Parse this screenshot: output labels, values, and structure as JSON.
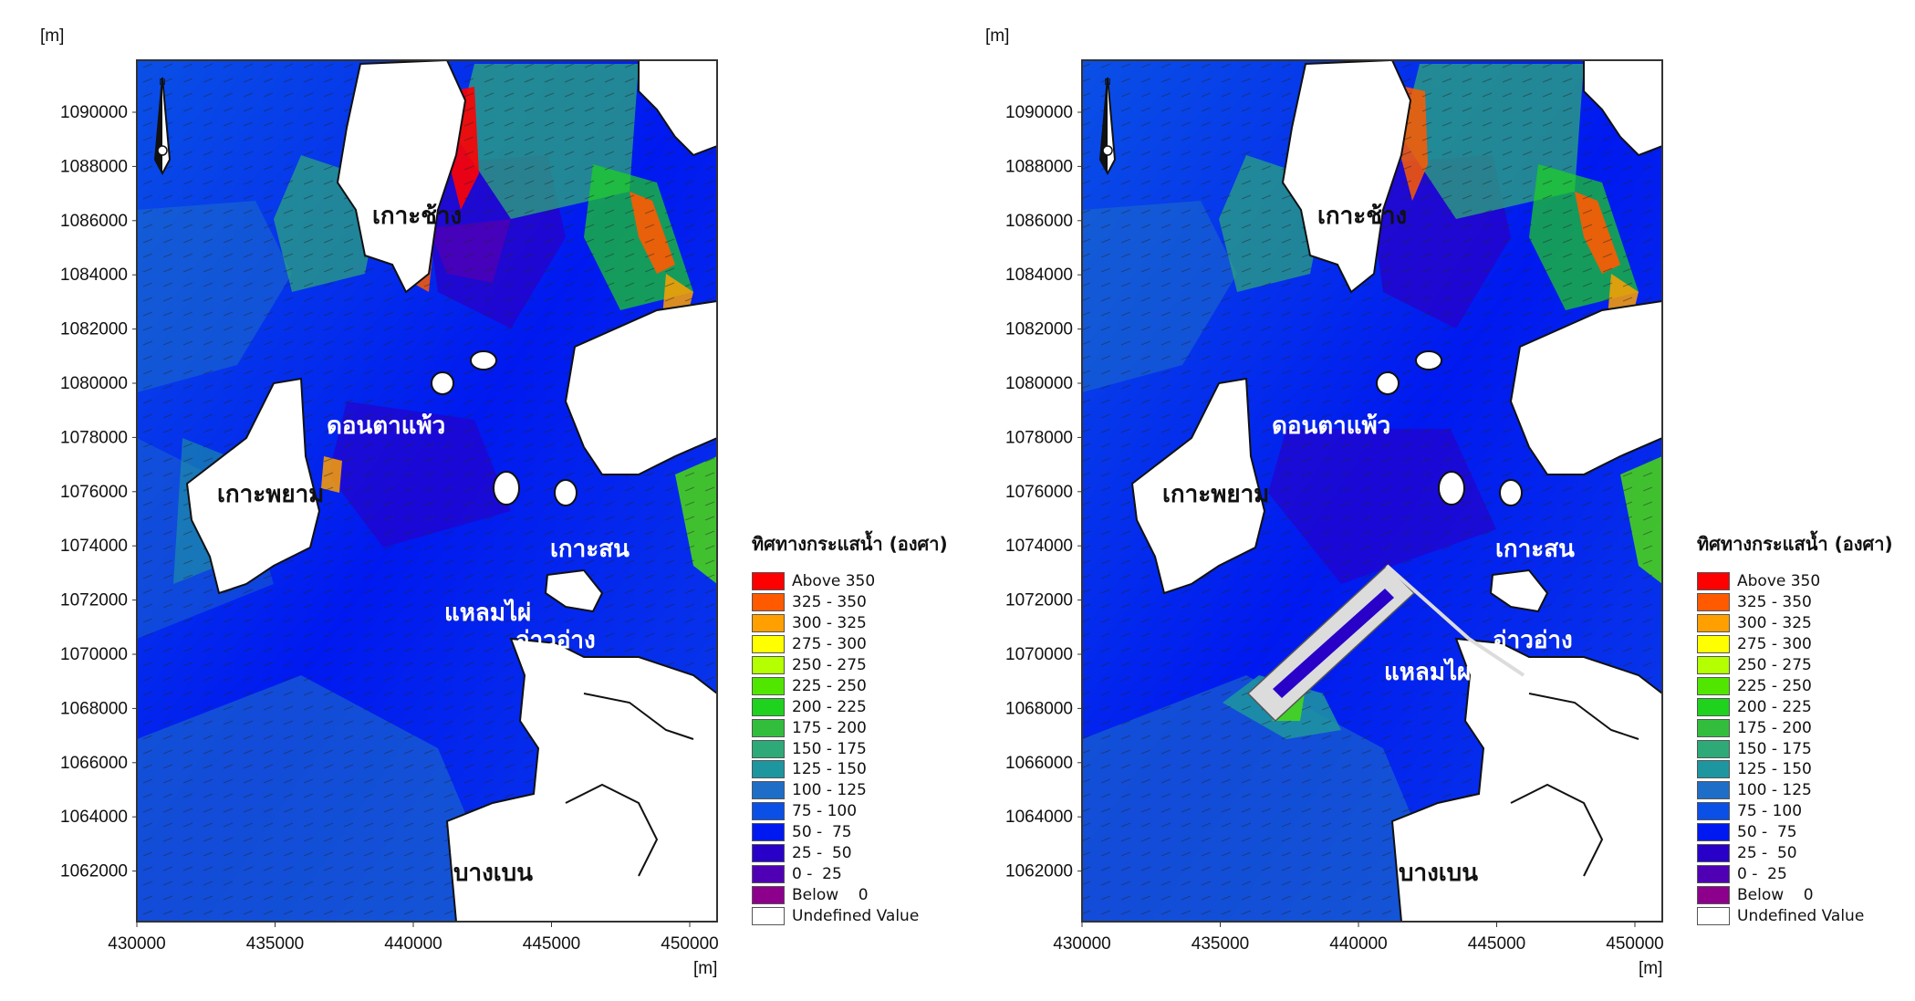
{
  "colors": {
    "above_350": "#ff0000",
    "c325_350": "#ff5a00",
    "c300_325": "#ffa000",
    "c275_300": "#ffff00",
    "c250_275": "#b4ff00",
    "c225_250": "#50e600",
    "c200_225": "#1ed21e",
    "c175_200": "#32be3c",
    "c150_175": "#2daa78",
    "c125_150": "#1e96a0",
    "c100_125": "#1e6ec8",
    "c75_100": "#0a50e6",
    "c50_75": "#0019f0",
    "c25_50": "#2800c8",
    "c0_25": "#5000b4",
    "below_0": "#8c008c",
    "undefined": "#ffffff",
    "land": "#ffffff",
    "coast": "#111111",
    "structure": "#dcdcdc"
  },
  "axes": {
    "y_unit": "[m]",
    "x_unit": "[m]",
    "y_ticks": [
      "1090000",
      "1088000",
      "1086000",
      "1084000",
      "1082000",
      "1080000",
      "1078000",
      "1076000",
      "1074000",
      "1072000",
      "1070000",
      "1068000",
      "1066000",
      "1064000",
      "1062000"
    ],
    "x_ticks": [
      "430000",
      "435000",
      "440000",
      "445000",
      "450000"
    ]
  },
  "north_arrow_label": "N",
  "panels": [
    {
      "id": "existing",
      "places": {
        "koh_chang": "เกาะช้าง",
        "don_ta_phaeo": "ดอนตาแพ้ว",
        "koh_phayam": "เกาะพยาม",
        "koh_son": "เกาะสน",
        "laem_phai": "แหลมไผ่",
        "ao_ang": "อ่าวอ่าง",
        "bang_ben": "บางเบน"
      }
    },
    {
      "id": "with-structure",
      "places": {
        "koh_chang": "เกาะช้าง",
        "don_ta_phaeo": "ดอนตาแพ้ว",
        "koh_phayam": "เกาะพยาม",
        "koh_son": "เกาะสน",
        "laem_phai": "แหลมไผ่",
        "ao_ang": "อ่าวอ่าง",
        "bang_ben": "บางเบน"
      }
    }
  ],
  "legend": {
    "title": "ทิศทางกระแสน้ำ (องศา)",
    "items": [
      {
        "label": "Above 350",
        "color": "#ff0000"
      },
      {
        "label": "325 - 350",
        "color": "#ff5a00"
      },
      {
        "label": "300 - 325",
        "color": "#ffa000"
      },
      {
        "label": "275 - 300",
        "color": "#ffff00"
      },
      {
        "label": "250 - 275",
        "color": "#b4ff00"
      },
      {
        "label": "225 - 250",
        "color": "#50e600"
      },
      {
        "label": "200 - 225",
        "color": "#1ed21e"
      },
      {
        "label": "175 - 200",
        "color": "#32be3c"
      },
      {
        "label": "150 - 175",
        "color": "#2daa78"
      },
      {
        "label": "125 - 150",
        "color": "#1e96a0"
      },
      {
        "label": "100 - 125",
        "color": "#1e6ec8"
      },
      {
        "label": "75 - 100",
        "color": "#0a50e6"
      },
      {
        "label": "50 -  75",
        "color": "#0019f0"
      },
      {
        "label": "25 -  50",
        "color": "#2800c8"
      },
      {
        "label": "0 -  25",
        "color": "#5000b4"
      },
      {
        "label": "Below    0",
        "color": "#8c008c"
      },
      {
        "label": "Undefined Value",
        "color": "#ffffff"
      }
    ]
  }
}
